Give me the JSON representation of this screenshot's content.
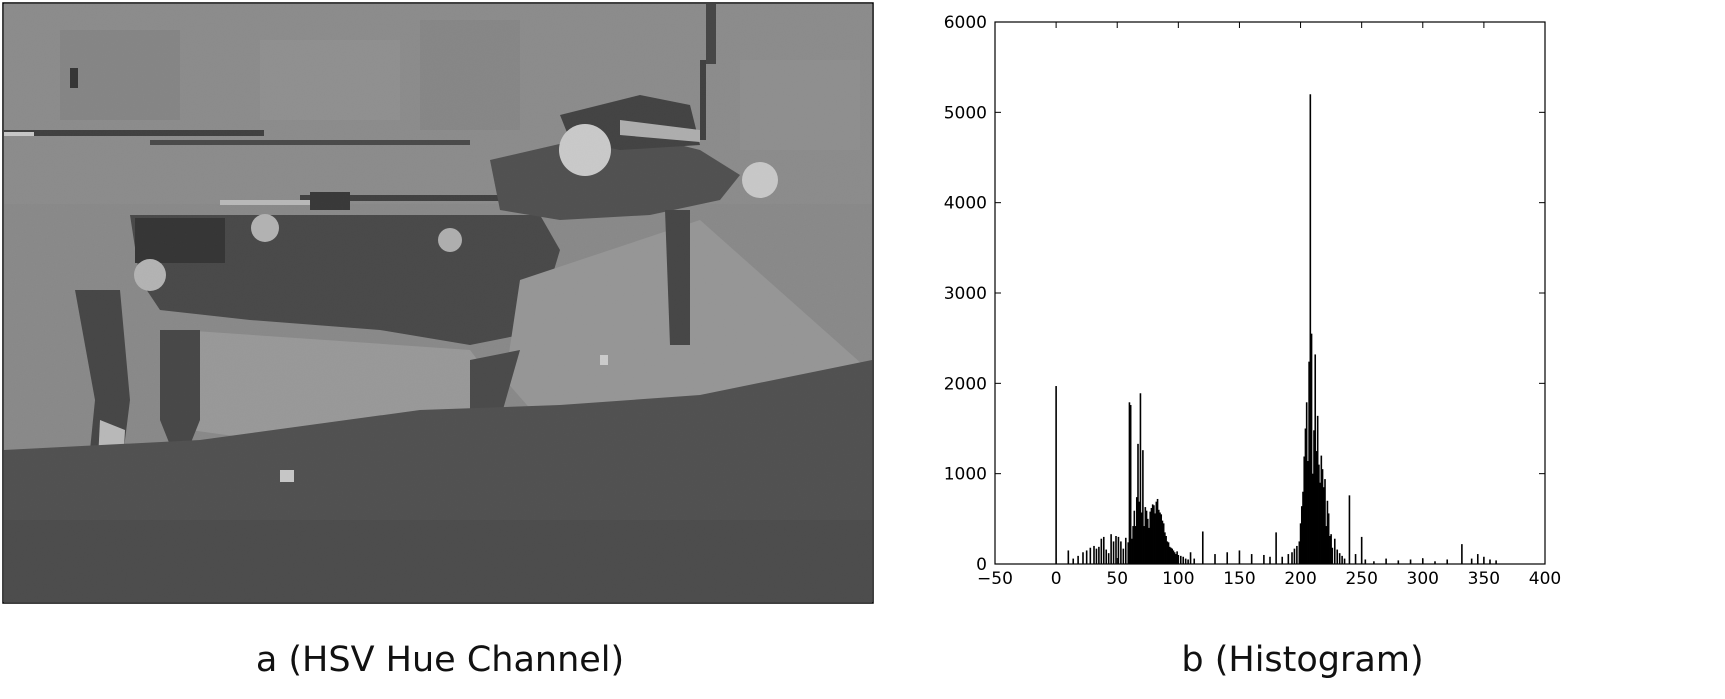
{
  "captions": {
    "a": "a (HSV Hue Channel)",
    "b": "b (Histogram)"
  },
  "chart_data": {
    "type": "bar",
    "title": "",
    "xlabel": "",
    "ylabel": "",
    "xlim": [
      -50,
      400
    ],
    "ylim": [
      0,
      6000
    ],
    "xticks": [
      -50,
      0,
      50,
      100,
      150,
      200,
      250,
      300,
      350,
      400
    ],
    "yticks": [
      0,
      1000,
      2000,
      3000,
      4000,
      5000,
      6000
    ],
    "grid": false,
    "bar_color": "#000000",
    "x": [
      0,
      10,
      14,
      18,
      22,
      25,
      28,
      31,
      33,
      35,
      37,
      39,
      41,
      43,
      45,
      47,
      49,
      51,
      53,
      55,
      57,
      59,
      60,
      61,
      62,
      63,
      64,
      65,
      66,
      67,
      68,
      69,
      70,
      71,
      72,
      73,
      74,
      75,
      76,
      77,
      78,
      79,
      80,
      81,
      82,
      83,
      84,
      85,
      86,
      87,
      88,
      89,
      90,
      91,
      92,
      93,
      94,
      95,
      96,
      97,
      98,
      99,
      100,
      102,
      104,
      106,
      108,
      110,
      113,
      120,
      130,
      140,
      150,
      160,
      170,
      175,
      180,
      185,
      190,
      193,
      195,
      197,
      199,
      200,
      201,
      202,
      203,
      204,
      205,
      206,
      207,
      208,
      209,
      210,
      211,
      212,
      213,
      214,
      215,
      216,
      217,
      218,
      219,
      220,
      221,
      222,
      223,
      224,
      225,
      226,
      228,
      230,
      232,
      234,
      236,
      240,
      245,
      250,
      253,
      260,
      270,
      280,
      290,
      300,
      310,
      320,
      332,
      340,
      345,
      350,
      355,
      360
    ],
    "values": [
      1970,
      150,
      60,
      90,
      130,
      150,
      180,
      200,
      170,
      190,
      280,
      300,
      160,
      120,
      330,
      250,
      310,
      300,
      250,
      170,
      290,
      240,
      1790,
      1760,
      280,
      420,
      590,
      420,
      740,
      1330,
      690,
      1890,
      570,
      1260,
      420,
      630,
      590,
      500,
      400,
      580,
      620,
      660,
      650,
      560,
      690,
      720,
      600,
      570,
      550,
      480,
      450,
      350,
      310,
      250,
      240,
      190,
      180,
      170,
      150,
      130,
      110,
      140,
      100,
      90,
      80,
      60,
      50,
      130,
      60,
      360,
      110,
      130,
      150,
      110,
      100,
      80,
      350,
      80,
      110,
      130,
      170,
      200,
      250,
      450,
      640,
      800,
      1190,
      1500,
      1790,
      1140,
      2240,
      5200,
      2550,
      1000,
      1480,
      2320,
      1250,
      1640,
      1100,
      900,
      1200,
      1050,
      850,
      940,
      420,
      700,
      560,
      310,
      330,
      180,
      280,
      160,
      120,
      90,
      60,
      760,
      110,
      300,
      50,
      30,
      60,
      40,
      50,
      60,
      30,
      50,
      220,
      60,
      110,
      80,
      50,
      40
    ]
  }
}
